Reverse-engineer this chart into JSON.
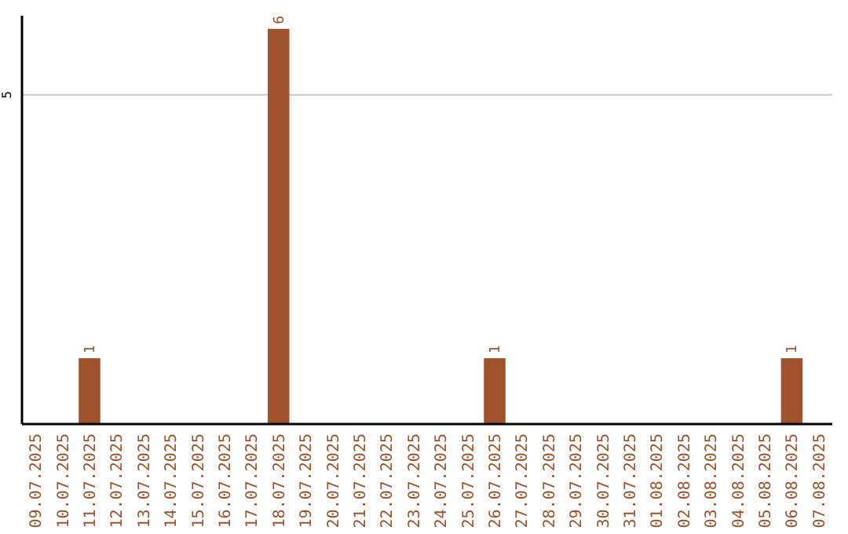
{
  "chart_data": {
    "type": "bar",
    "categories": [
      "09.07.2025",
      "10.07.2025",
      "11.07.2025",
      "12.07.2025",
      "13.07.2025",
      "14.07.2025",
      "15.07.2025",
      "16.07.2025",
      "17.07.2025",
      "18.07.2025",
      "19.07.2025",
      "20.07.2025",
      "21.07.2025",
      "22.07.2025",
      "23.07.2025",
      "24.07.2025",
      "25.07.2025",
      "26.07.2025",
      "27.07.2025",
      "28.07.2025",
      "29.07.2025",
      "30.07.2025",
      "31.07.2025",
      "01.08.2025",
      "02.08.2025",
      "03.08.2025",
      "04.08.2025",
      "05.08.2025",
      "06.08.2025",
      "07.08.2025"
    ],
    "values": [
      0,
      0,
      1,
      0,
      0,
      0,
      0,
      0,
      0,
      6,
      0,
      0,
      0,
      0,
      0,
      0,
      0,
      1,
      0,
      0,
      0,
      0,
      0,
      0,
      0,
      0,
      0,
      0,
      1,
      0
    ],
    "value_labels": [
      null,
      null,
      "1",
      null,
      null,
      null,
      null,
      null,
      null,
      "6",
      null,
      null,
      null,
      null,
      null,
      null,
      null,
      "1",
      null,
      null,
      null,
      null,
      null,
      null,
      null,
      null,
      null,
      null,
      "1",
      null
    ],
    "color": "#a0522d",
    "ylim": [
      0,
      6.2
    ],
    "yticks": [
      5
    ],
    "grid": "y"
  }
}
